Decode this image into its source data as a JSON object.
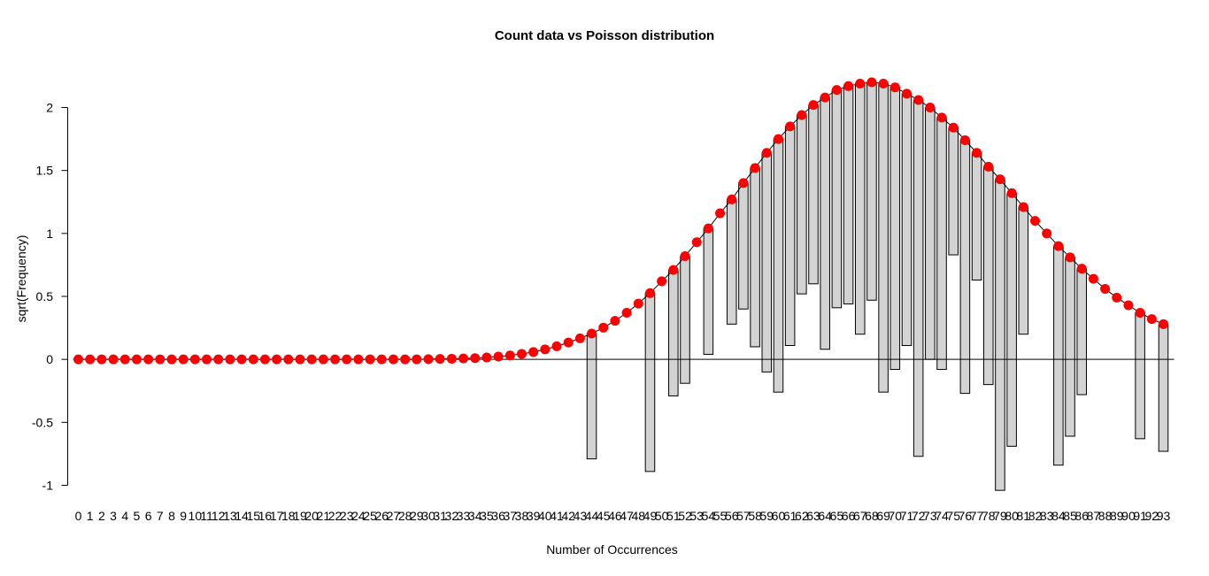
{
  "chart_data": {
    "type": "bar",
    "title": "Count data vs Poisson distribution",
    "xlabel": "Number of Occurrences",
    "ylabel": "sqrt(Frequency)",
    "ylim": [
      -1,
      2
    ],
    "yticks": [
      "-1",
      "-0.5",
      "0",
      "0.5",
      "1",
      "1.5",
      "2"
    ],
    "categories": [
      "0",
      "1",
      "2",
      "3",
      "4",
      "5",
      "6",
      "7",
      "8",
      "9",
      "10",
      "11",
      "12",
      "13",
      "14",
      "15",
      "16",
      "17",
      "18",
      "19",
      "20",
      "21",
      "22",
      "23",
      "24",
      "25",
      "26",
      "27",
      "28",
      "29",
      "30",
      "31",
      "32",
      "33",
      "34",
      "35",
      "36",
      "37",
      "38",
      "39",
      "40",
      "41",
      "42",
      "43",
      "44",
      "45",
      "46",
      "47",
      "48",
      "49",
      "50",
      "51",
      "52",
      "53",
      "54",
      "55",
      "56",
      "57",
      "58",
      "59",
      "60",
      "61",
      "62",
      "63",
      "64",
      "65",
      "66",
      "67",
      "68",
      "69",
      "70",
      "71",
      "72",
      "73",
      "74",
      "75",
      "76",
      "77",
      "78",
      "79",
      "80",
      "81",
      "82",
      "83",
      "84",
      "85",
      "86",
      "87",
      "88",
      "89",
      "90",
      "91",
      "92",
      "93"
    ],
    "series": [
      {
        "role": "expected-points",
        "marker": "point",
        "color": "#ff0000",
        "values": [
          0.0,
          0.0,
          0.0,
          0.0,
          0.0,
          0.0,
          0.0,
          0.0,
          0.0,
          0.0,
          0.0,
          0.0,
          0.0,
          0.0,
          0.0,
          0.0,
          0.0,
          0.0,
          0.0,
          0.0,
          0.0,
          0.0,
          0.0,
          0.0,
          0.0,
          0.0,
          0.0,
          0.0,
          0.0,
          0.0,
          0.002,
          0.004,
          0.005,
          0.007,
          0.01,
          0.015,
          0.022,
          0.031,
          0.043,
          0.058,
          0.079,
          0.104,
          0.134,
          0.167,
          0.205,
          0.252,
          0.306,
          0.37,
          0.443,
          0.526,
          0.62,
          0.71,
          0.82,
          0.93,
          1.04,
          1.16,
          1.27,
          1.4,
          1.52,
          1.64,
          1.75,
          1.85,
          1.94,
          2.02,
          2.08,
          2.14,
          2.17,
          2.19,
          2.2,
          2.19,
          2.16,
          2.11,
          2.06,
          2.0,
          1.92,
          1.84,
          1.74,
          1.64,
          1.53,
          1.43,
          1.32,
          1.21,
          1.1,
          1.0,
          0.9,
          0.81,
          0.72,
          0.64,
          0.56,
          0.49,
          0.43,
          0.37,
          0.32,
          0.28
        ]
      },
      {
        "role": "hanging-bar-bottom",
        "marker": "bar",
        "color": "#d3d3d3",
        "values": [
          null,
          null,
          null,
          null,
          null,
          null,
          null,
          null,
          null,
          null,
          null,
          null,
          null,
          null,
          null,
          null,
          null,
          null,
          null,
          null,
          null,
          null,
          null,
          null,
          null,
          null,
          null,
          null,
          null,
          null,
          null,
          null,
          null,
          null,
          null,
          null,
          null,
          null,
          null,
          null,
          null,
          null,
          null,
          null,
          -0.79,
          null,
          null,
          null,
          null,
          -0.89,
          null,
          -0.29,
          -0.19,
          null,
          0.04,
          null,
          0.28,
          0.4,
          0.1,
          -0.1,
          -0.26,
          0.11,
          0.52,
          0.6,
          0.08,
          0.41,
          0.44,
          0.2,
          0.47,
          -0.26,
          -0.08,
          0.11,
          -0.77,
          0.0,
          -0.08,
          0.83,
          -0.27,
          0.63,
          -0.2,
          -1.04,
          -0.69,
          0.2,
          null,
          null,
          -0.84,
          -0.61,
          -0.28,
          null,
          null,
          null,
          null,
          -0.63,
          null,
          -0.73
        ]
      }
    ],
    "reference_line": 0,
    "grid": false,
    "legend": "none",
    "colors": {
      "points": "#ff0000",
      "bars": "#d3d3d3",
      "bar_border": "#000000"
    }
  }
}
